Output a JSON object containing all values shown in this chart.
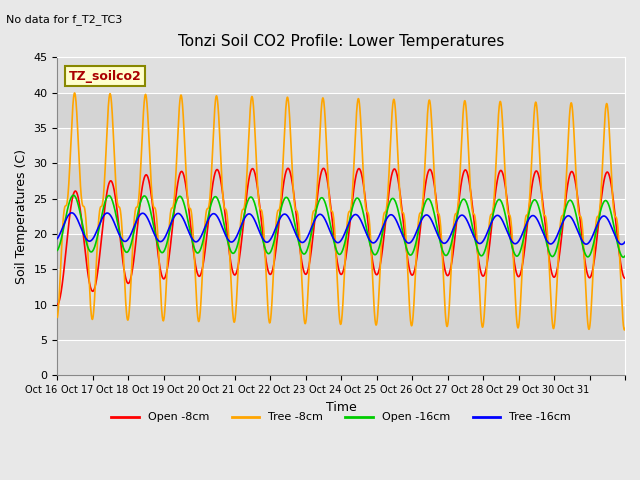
{
  "title": "Tonzi Soil CO2 Profile: Lower Temperatures",
  "subtitle": "No data for f_T2_TC3",
  "xlabel": "Time",
  "ylabel": "Soil Temperatures (C)",
  "ylim": [
    0,
    45
  ],
  "yticks": [
    0,
    5,
    10,
    15,
    20,
    25,
    30,
    35,
    40,
    45
  ],
  "xtick_labels": [
    "Oct 16",
    "Oct 17",
    "Oct 18",
    "Oct 19",
    "Oct 20",
    "Oct 21",
    "Oct 22",
    "Oct 23",
    "Oct 24",
    "Oct 25",
    "Oct 26",
    "Oct 27",
    "Oct 28",
    "Oct 29",
    "Oct 30",
    "Oct 31"
  ],
  "legend_label": "TZ_soilco2",
  "series_labels": [
    "Open -8cm",
    "Tree -8cm",
    "Open -16cm",
    "Tree -16cm"
  ],
  "series_colors": [
    "#ff0000",
    "#ffa500",
    "#00cc00",
    "#0000ff"
  ],
  "bg_stripe_colors": [
    "#e0e0e0",
    "#d0d0d0"
  ],
  "n_days": 16,
  "points_per_day": 200
}
